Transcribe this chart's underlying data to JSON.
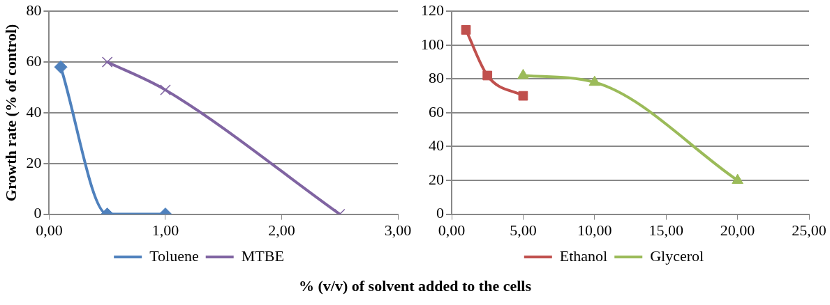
{
  "chart_data": [
    {
      "type": "line",
      "xlabel": "% (v/v) of solvent added to the cells",
      "ylabel": "Growth rate (% of control)",
      "xlim": [
        0,
        3
      ],
      "xticks": [
        {
          "value": 0,
          "label": "0,00"
        },
        {
          "value": 1,
          "label": "1,00"
        },
        {
          "value": 2,
          "label": "2,00"
        },
        {
          "value": 3,
          "label": "3,00"
        }
      ],
      "ylim": [
        0,
        80
      ],
      "yticks": [
        0,
        20,
        40,
        60,
        80
      ],
      "grid": "y",
      "legend": "bottom",
      "series": [
        {
          "name": "Toluene",
          "color": "#4f81bd",
          "marker": "diamond",
          "x": [
            0.1,
            0.5,
            1.0
          ],
          "values": [
            58,
            0,
            0
          ]
        },
        {
          "name": "MTBE",
          "color": "#8064a2",
          "marker": "cross",
          "x": [
            0.5,
            1.0,
            2.5
          ],
          "values": [
            60,
            49,
            0
          ]
        }
      ]
    },
    {
      "type": "line",
      "xlim": [
        0,
        25
      ],
      "xticks": [
        {
          "value": 0,
          "label": "0,00"
        },
        {
          "value": 5,
          "label": "5,00"
        },
        {
          "value": 10,
          "label": "10,00"
        },
        {
          "value": 15,
          "label": "15,00"
        },
        {
          "value": 20,
          "label": "20,00"
        },
        {
          "value": 25,
          "label": "25,00"
        }
      ],
      "ylim": [
        0,
        120
      ],
      "yticks": [
        0,
        20,
        40,
        60,
        80,
        100,
        120
      ],
      "grid": "y",
      "legend": "bottom",
      "series": [
        {
          "name": "Ethanol",
          "color": "#c0504d",
          "marker": "square",
          "x": [
            1,
            2.5,
            5
          ],
          "values": [
            109,
            82,
            70
          ]
        },
        {
          "name": "Glycerol",
          "color": "#9bbb59",
          "marker": "triangle",
          "x": [
            5,
            10,
            20
          ],
          "values": [
            82,
            78,
            20
          ]
        }
      ]
    }
  ]
}
